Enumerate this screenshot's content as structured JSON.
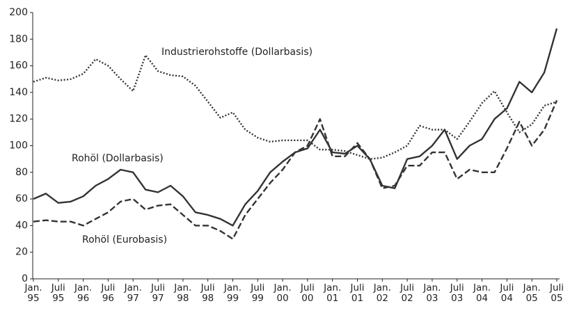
{
  "chart_data": {
    "type": "line",
    "categories": [
      "Jan. 95",
      null,
      "Juli 95",
      null,
      "Jan. 96",
      null,
      "Juli 96",
      null,
      "Jan. 97",
      null,
      "Juli 97",
      null,
      "Jan. 98",
      null,
      "Juli 98",
      null,
      "Jan. 99",
      null,
      "Juli 99",
      null,
      "Jan. 00",
      null,
      "Juli 00",
      null,
      "Jan. 01",
      null,
      "Juli 01",
      null,
      "Jan. 02",
      null,
      "Juli 02",
      null,
      "Jan. 03",
      null,
      "Juli 03",
      null,
      "Jan. 04",
      null,
      "Juli 04",
      null,
      "Jan. 05",
      null,
      "Juli 05"
    ],
    "series": [
      {
        "name": "Industrierohstoffe (Dollarbasis)",
        "color": "#333333",
        "style": "dotted",
        "values": [
          148,
          151,
          149,
          150,
          154,
          165,
          160,
          150,
          141,
          168,
          156,
          153,
          152,
          145,
          133,
          121,
          125,
          112,
          106,
          103,
          104,
          104,
          104,
          97,
          97,
          96,
          93,
          90,
          91,
          95,
          100,
          115,
          112,
          112,
          105,
          118,
          132,
          141,
          125,
          110,
          116,
          130,
          133
        ]
      },
      {
        "name": "Rohöl (Dollarbasis)",
        "color": "#333333",
        "style": "solid",
        "values": [
          60,
          64,
          57,
          58,
          62,
          70,
          75,
          82,
          80,
          67,
          65,
          70,
          62,
          50,
          48,
          45,
          40,
          56,
          66,
          80,
          88,
          95,
          98,
          112,
          95,
          94,
          100,
          90,
          70,
          68,
          90,
          92,
          100,
          112,
          90,
          100,
          105,
          120,
          128,
          148,
          140,
          155,
          188
        ]
      },
      {
        "name": "Rohöl (Eurobasis)",
        "color": "#333333",
        "style": "dashed",
        "values": [
          43,
          44,
          43,
          43,
          40,
          45,
          50,
          58,
          60,
          52,
          55,
          56,
          48,
          40,
          40,
          36,
          30,
          48,
          60,
          72,
          82,
          95,
          100,
          120,
          92,
          92,
          102,
          90,
          68,
          70,
          85,
          85,
          95,
          95,
          75,
          82,
          80,
          80,
          98,
          118,
          100,
          112,
          134
        ]
      }
    ],
    "ylim": [
      0,
      200
    ],
    "yticks": [
      0,
      20,
      40,
      60,
      80,
      100,
      120,
      140,
      160,
      180,
      200
    ],
    "grid": false
  }
}
